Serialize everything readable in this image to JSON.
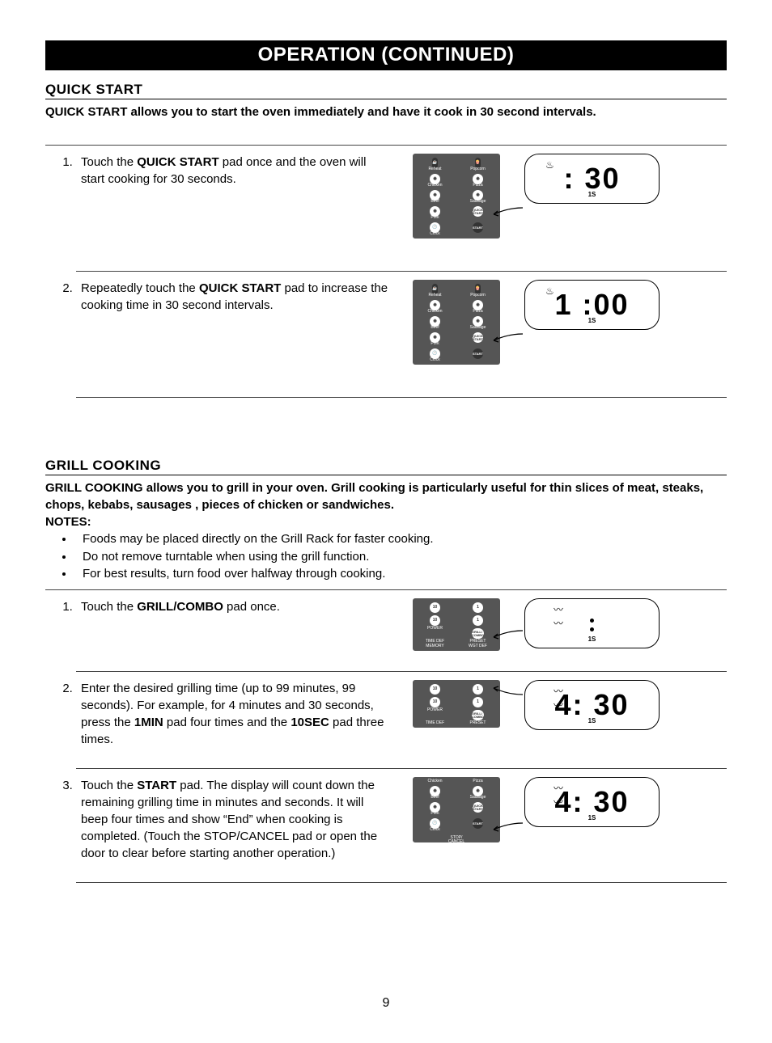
{
  "title_bar": "OPERATION (CONTINUED)",
  "page_number": "9",
  "quick_start": {
    "heading": "QUICK START",
    "intro": "QUICK START allows you to start the oven immediately and have it cook in 30 second intervals.",
    "steps": [
      {
        "text_pre": "Touch the ",
        "bold": "QUICK START",
        "text_post": " pad once and the oven will start cooking for 30 seconds.",
        "display": ": 30",
        "display_small": "1S",
        "icon": "steam"
      },
      {
        "text_pre": "Repeatedly touch the ",
        "bold": "QUICK START",
        "text_post": " pad to increase the cooking time in 30 second intervals.",
        "display": "1 :00",
        "display_small": "1S",
        "icon": "steam"
      }
    ],
    "pad_labels": {
      "row1a": "Reheat",
      "row1b": "Popcorn",
      "row2a": "Chicken",
      "row2b": "Pizza",
      "row3a": "Beef",
      "row3b": "Sausage",
      "row4a": "Pork",
      "quick": "QUICK\nSTART",
      "clock": "Clock",
      "start": "START"
    }
  },
  "grill": {
    "heading": "GRILL COOKING",
    "intro": "GRILL COOKING allows you to grill in your oven. Grill cooking is particularly useful for thin slices of meat, steaks, chops, kebabs, sausages , pieces of chicken or sandwiches.",
    "notes_label": "NOTES:",
    "notes": [
      "Foods may be placed directly on the Grill Rack for faster cooking.",
      "Do not remove turntable when using the grill function.",
      "For best results, turn food over halfway through cooking."
    ],
    "steps": [
      {
        "text_pre": "Touch the ",
        "bold": "GRILL/COMBO",
        "text_post": " pad once.",
        "display_mode": "dots",
        "display_small": "1S",
        "icon": "wave"
      },
      {
        "full_html": "Enter the desired grilling time (up to 99 minutes, 99 seconds). For example, for 4 minutes and 30 seconds, press the <b>1MIN</b> pad four times and the <b>10SEC</b> pad three times.",
        "display": "4: 30",
        "display_small": "1S",
        "icon": "wave"
      },
      {
        "full_html": "Touch the <b>START</b> pad. The display will count down the remaining grilling time in minutes and seconds. It will beep four times and show “End” when cooking is completed. (Touch the STOP/CANCEL pad or open the door to clear before starting another operation.)",
        "display": "4: 30",
        "display_small": "1S",
        "icon": "wave"
      }
    ],
    "pad_labels": {
      "ten_m": "10",
      "one_m": "1",
      "ten_s": "10",
      "one_s": "1",
      "power": "POWER",
      "grill": "GRILL/\nCOMBO",
      "timedef": "TIME DEF",
      "preset": "PRESET",
      "memory": "MEMORY",
      "wgtdef": "WGT DEF",
      "chicken": "Chicken",
      "pizza": "Pizza",
      "beef": "Beef",
      "sausage": "Sausage",
      "pork": "Pork",
      "quick": "QUICK\nSTART",
      "clock": "Clock",
      "start": "START",
      "stop": "STOP/\nCANCEL"
    }
  }
}
